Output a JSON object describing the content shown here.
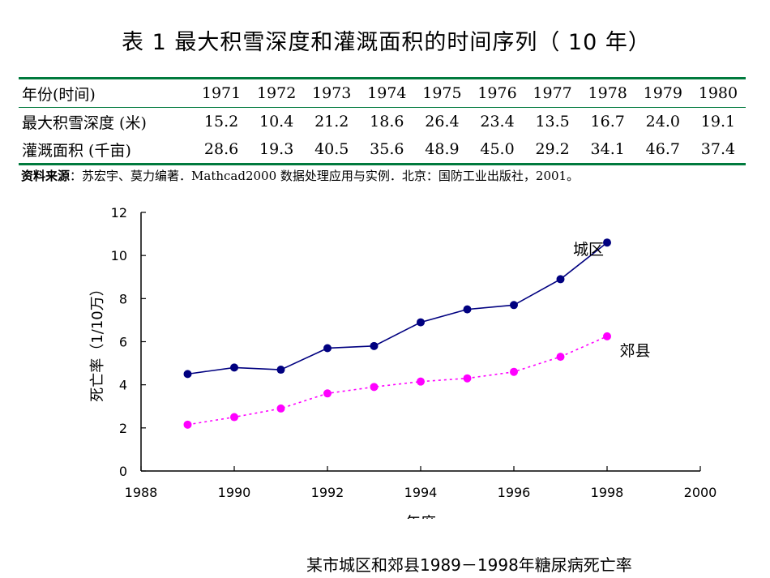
{
  "title": "表 1   最大积雪深度和灌溉面积的时间序列（ 10 年）",
  "table": {
    "header_label": "年份(时间)",
    "years": [
      "1971",
      "1972",
      "1973",
      "1974",
      "1975",
      "1976",
      "1977",
      "1978",
      "1979",
      "1980"
    ],
    "rows": [
      {
        "label": "最大积雪深度 (米)",
        "values": [
          "15.2",
          "10.4",
          "21.2",
          "18.6",
          "26.4",
          "23.4",
          "13.5",
          "16.7",
          "24.0",
          "19.1"
        ]
      },
      {
        "label": "灌溉面积 (千亩)",
        "values": [
          "28.6",
          "19.3",
          "40.5",
          "35.6",
          "48.9",
          "45.0",
          "29.2",
          "34.1",
          "46.7",
          "37.4"
        ]
      }
    ]
  },
  "source": {
    "label": "资料来源",
    "text": "：苏宏宇、莫力编著．Mathcad2000 数据处理应用与实例．北京：国防工业出版社，2001。"
  },
  "colors": {
    "rule": "#007a3d",
    "urban": "#000080",
    "suburban": "#ff00ff"
  },
  "chart_data": {
    "type": "line",
    "title": "某市城区和郊县1989－1998年糖尿病死亡率",
    "xlabel": "年度",
    "ylabel": "死亡率（1/10万）",
    "xlim": [
      1988,
      2000
    ],
    "ylim": [
      0,
      12
    ],
    "xticks": [
      1988,
      1990,
      1992,
      1994,
      1996,
      1998,
      2000
    ],
    "yticks": [
      0,
      2,
      4,
      6,
      8,
      10,
      12
    ],
    "x": [
      1989,
      1990,
      1991,
      1992,
      1993,
      1994,
      1995,
      1996,
      1997,
      1998
    ],
    "series": [
      {
        "name": "城区",
        "values": [
          4.5,
          4.8,
          4.7,
          5.7,
          5.8,
          6.9,
          7.5,
          7.7,
          8.9,
          10.6
        ]
      },
      {
        "name": "郊县",
        "values": [
          2.15,
          2.5,
          2.9,
          3.6,
          3.9,
          4.15,
          4.3,
          4.6,
          5.3,
          6.25
        ]
      }
    ]
  }
}
